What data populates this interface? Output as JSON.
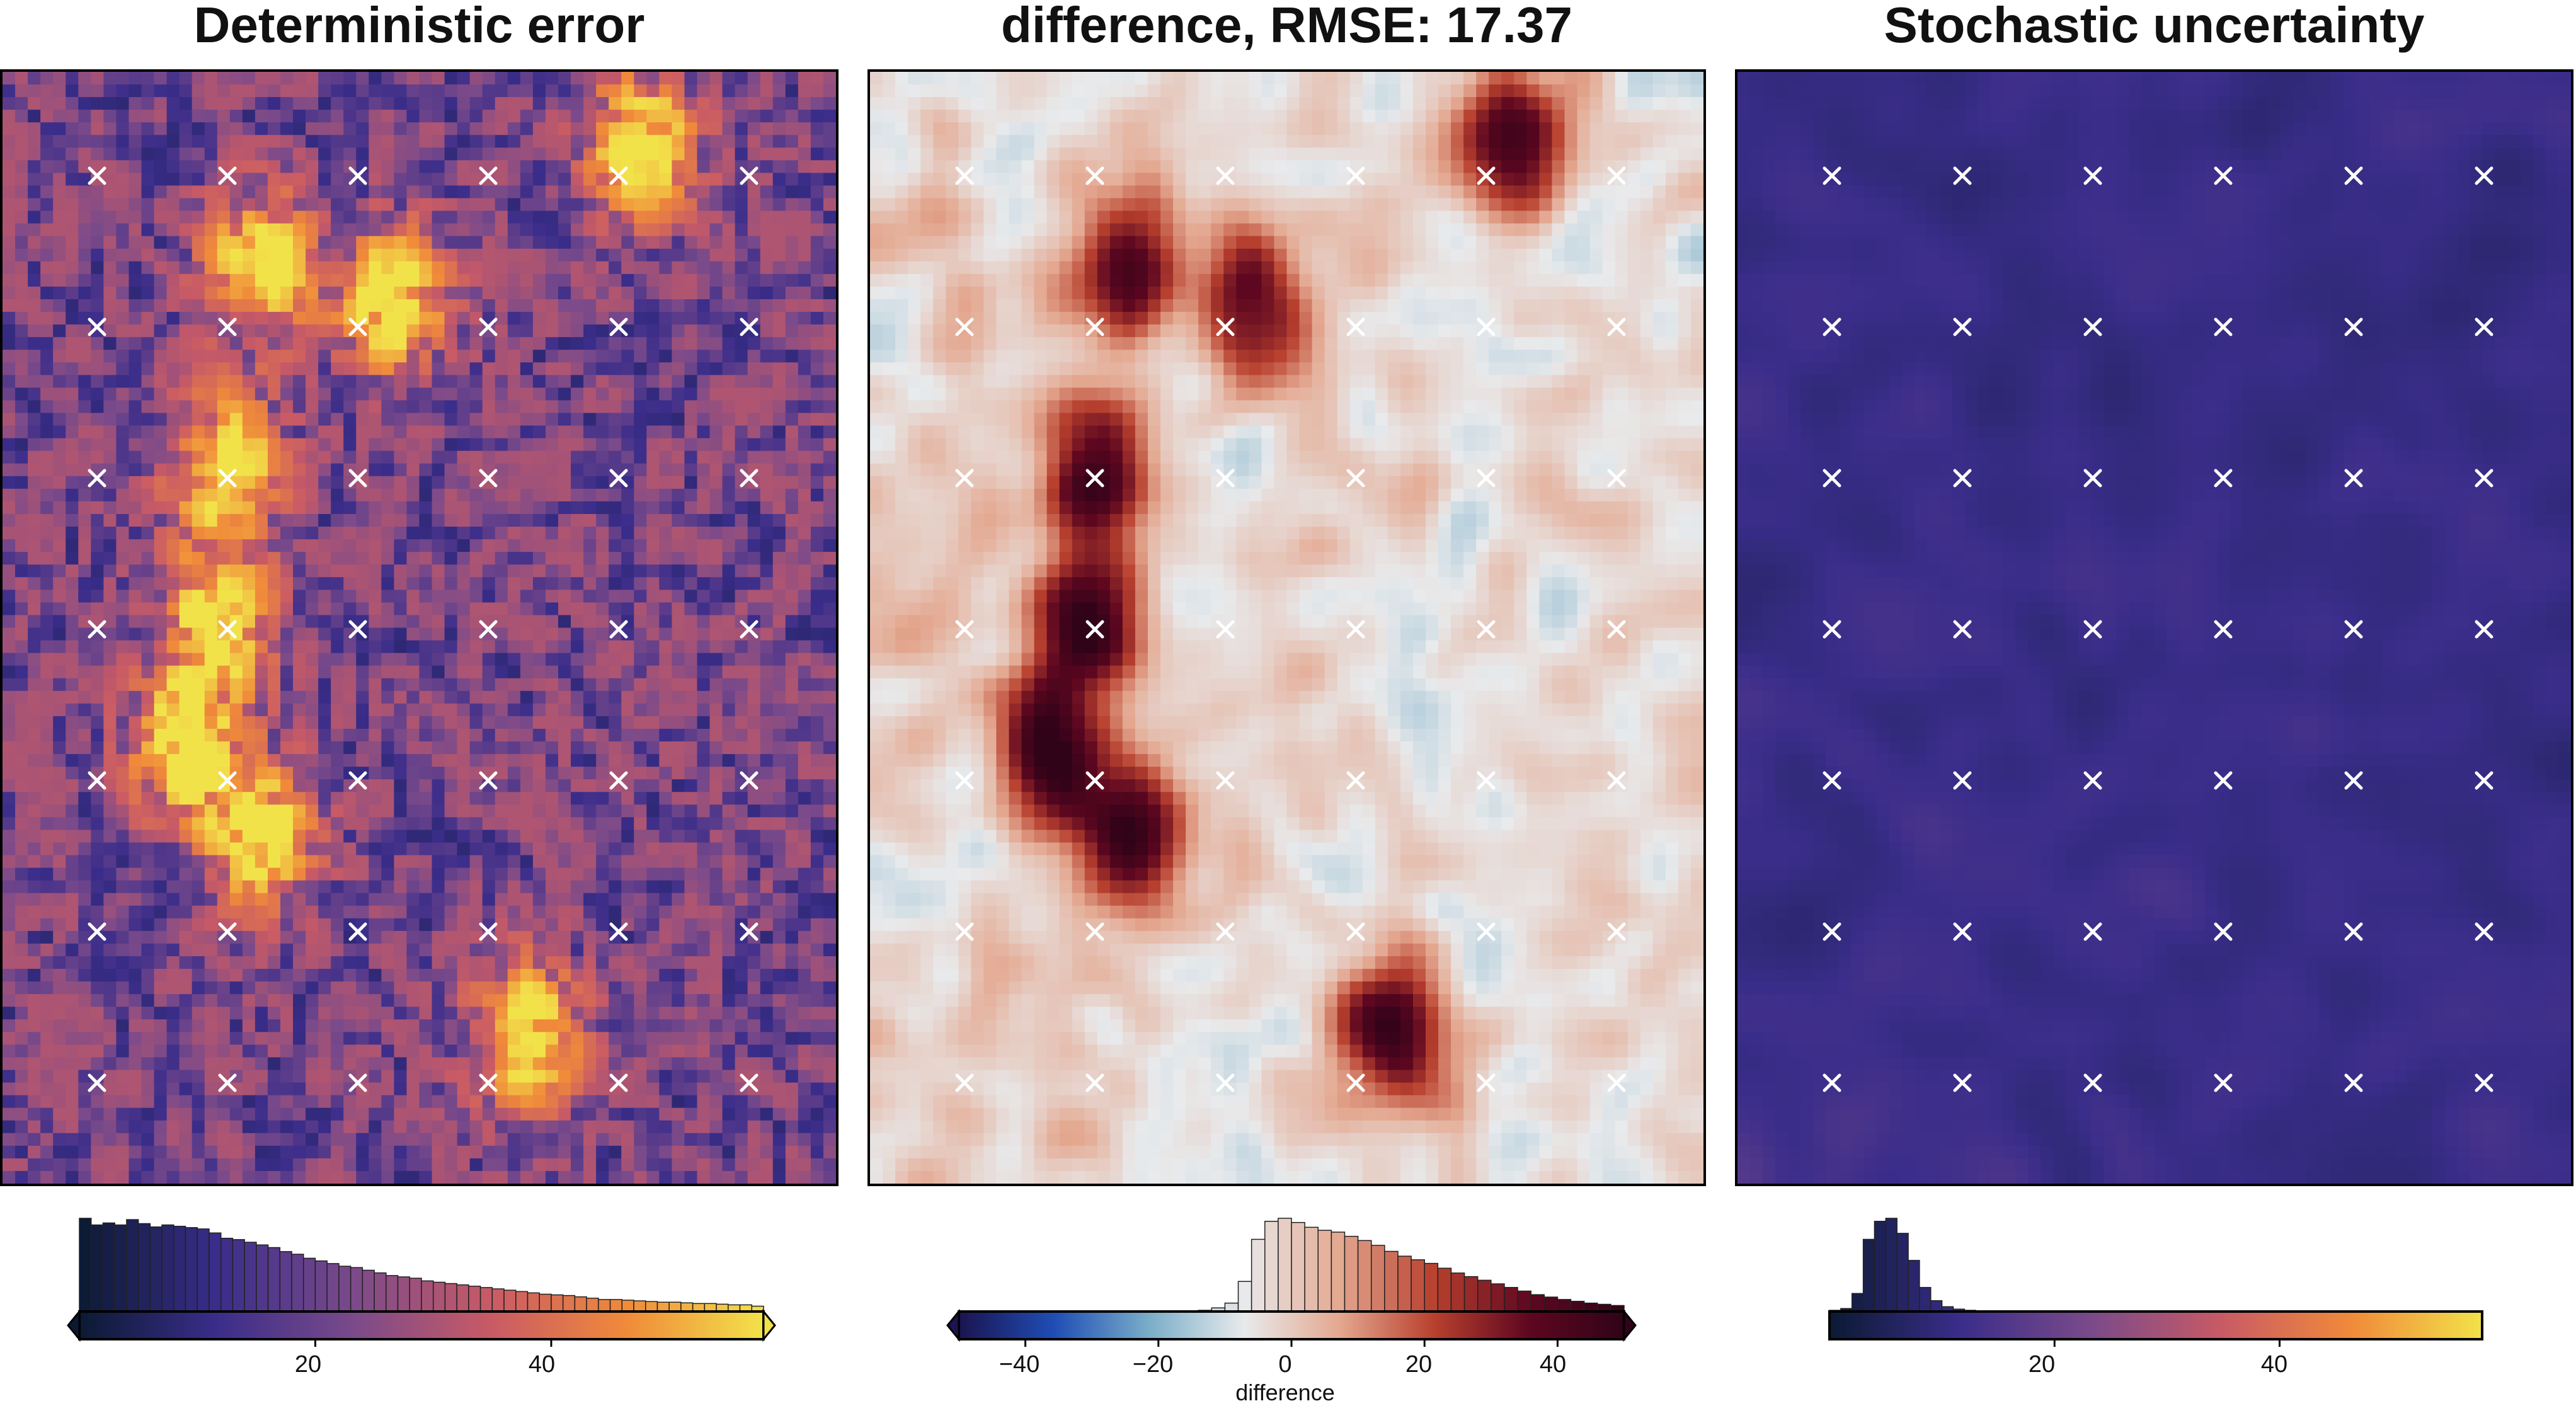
{
  "chart_data": [
    {
      "type": "heatmap",
      "title": "Deterministic error",
      "colormap": "lajolla-like",
      "colors": [
        "#0b1a33",
        "#3a2d8a",
        "#7a4a8a",
        "#c85a66",
        "#f08a3a",
        "#f2e24a"
      ],
      "color_range": [
        0,
        58
      ],
      "colorbar_ticks": [
        "20",
        "40"
      ],
      "colorbar_tick_values": [
        20,
        40
      ],
      "colorbar_label": "",
      "histogram_counts": [
        140,
        130,
        133,
        130,
        138,
        132,
        127,
        130,
        128,
        126,
        124,
        118,
        110,
        108,
        104,
        100,
        96,
        90,
        86,
        80,
        76,
        72,
        68,
        66,
        62,
        58,
        54,
        52,
        50,
        46,
        44,
        42,
        40,
        38,
        36,
        34,
        32,
        30,
        28,
        26,
        25,
        24,
        22,
        20,
        18,
        18,
        17,
        16,
        15,
        14,
        14,
        13,
        12,
        12,
        11,
        10,
        10,
        8
      ],
      "markers": {
        "cols": 6,
        "rows": 7,
        "symbol": "×"
      }
    },
    {
      "type": "heatmap",
      "title": "difference, RMSE: 17.37",
      "colormap": "balance-like",
      "colors": [
        "#1b1450",
        "#1f4db5",
        "#7aaec8",
        "#e8eaec",
        "#e4a890",
        "#b8402e",
        "#5e0720",
        "#300318"
      ],
      "color_range": [
        -50,
        50
      ],
      "colorbar_ticks": [
        "−40",
        "−20",
        "0",
        "20",
        "40"
      ],
      "colorbar_tick_values": [
        -40,
        -20,
        0,
        20,
        40
      ],
      "colorbar_label": "difference",
      "histogram_counts": [
        0,
        0,
        0,
        0,
        0,
        0,
        0,
        0,
        0,
        0,
        0,
        0,
        0,
        0,
        0,
        0,
        0,
        1,
        2,
        6,
        14,
        50,
        120,
        150,
        155,
        148,
        140,
        135,
        132,
        125,
        118,
        110,
        100,
        92,
        86,
        80,
        72,
        64,
        58,
        52,
        46,
        40,
        34,
        28,
        24,
        20,
        17,
        14,
        12,
        10
      ],
      "markers": {
        "cols": 6,
        "rows": 7,
        "symbol": "×"
      }
    },
    {
      "type": "heatmap",
      "title": "Stochastic uncertainty",
      "colormap": "lajolla-like",
      "colors": [
        "#0b1a33",
        "#3a2d8a",
        "#7a4a8a",
        "#c85a66",
        "#f08a3a",
        "#f2e24a"
      ],
      "color_range": [
        0,
        58
      ],
      "colorbar_ticks": [
        "20",
        "40"
      ],
      "colorbar_tick_values": [
        20,
        40
      ],
      "colorbar_label": "",
      "histogram_counts": [
        2,
        5,
        30,
        120,
        150,
        155,
        130,
        85,
        40,
        18,
        8,
        4,
        2,
        1,
        1,
        0,
        0
      ],
      "markers": {
        "cols": 6,
        "rows": 7,
        "symbol": "×"
      }
    }
  ]
}
